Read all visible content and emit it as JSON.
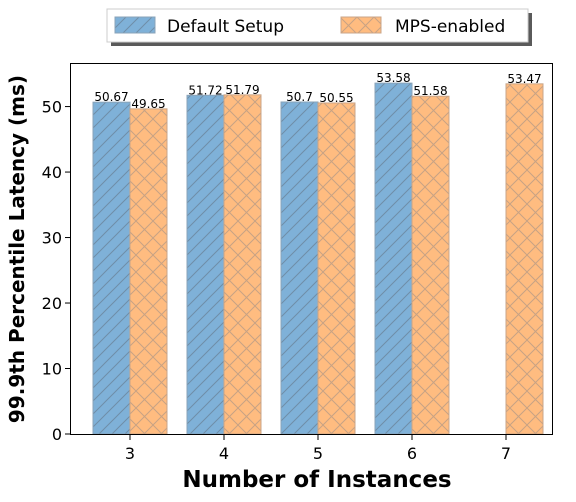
{
  "chart_data": {
    "type": "bar",
    "categories": [
      "3",
      "4",
      "5",
      "6",
      "7"
    ],
    "series": [
      {
        "name": "Default Setup",
        "values": [
          50.67,
          51.72,
          50.7,
          53.58,
          null
        ],
        "color": "#7fb1d8",
        "hatch": "diagonal"
      },
      {
        "name": "MPS-enabled",
        "values": [
          49.65,
          51.79,
          50.55,
          51.58,
          53.47
        ],
        "color": "#ffbc80",
        "hatch": "cross"
      }
    ],
    "data_labels": [
      [
        "50.67",
        "51.72",
        "50.7",
        "53.58",
        ""
      ],
      [
        "49.65",
        "51.79",
        "50.55",
        "51.58",
        "53.47"
      ]
    ],
    "xlabel": "Number of Instances",
    "ylabel": "99.9th Percentile Latency (ms)",
    "ylim": [
      0,
      56.5
    ],
    "yticks": [
      0,
      10,
      20,
      30,
      40,
      50
    ],
    "legend_position": "top-center, above plot",
    "grid": false
  }
}
